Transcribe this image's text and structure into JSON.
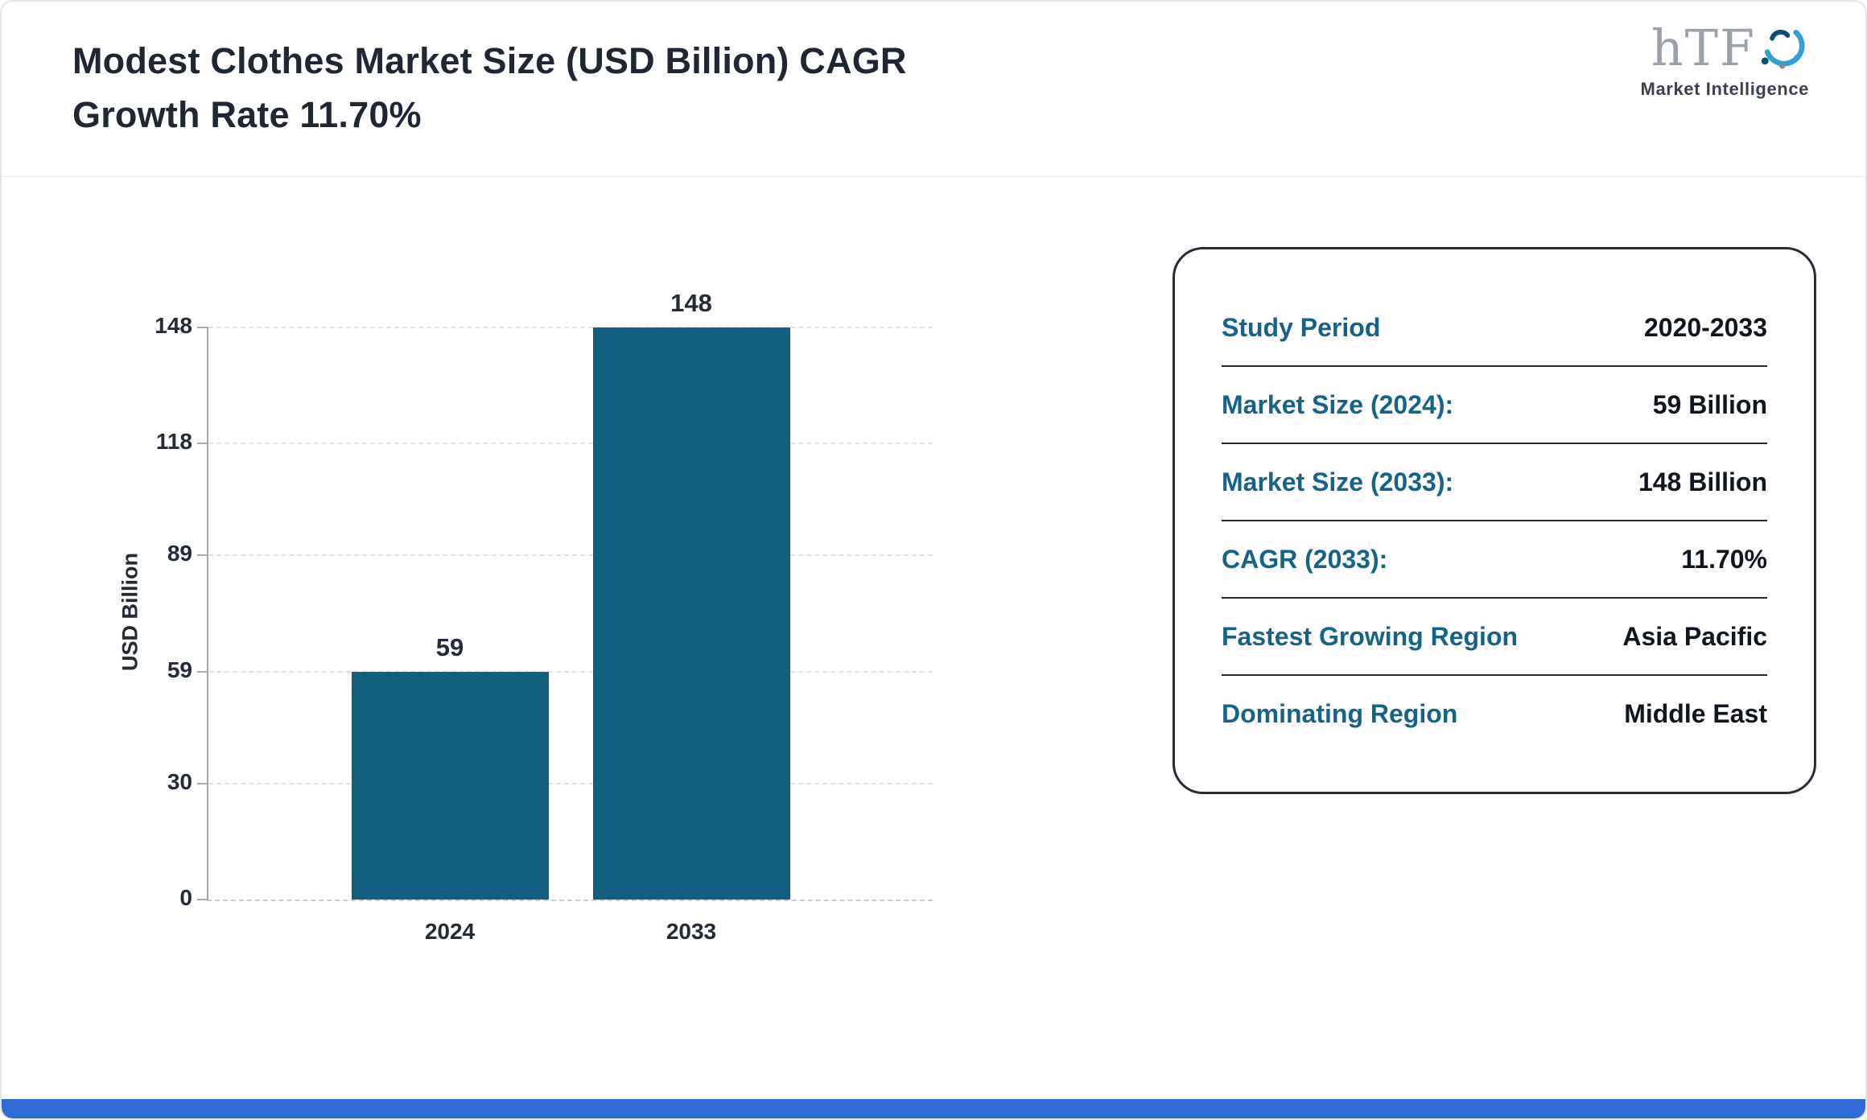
{
  "header": {
    "title_line1": "Modest Clothes Market Size (USD Billion) CAGR",
    "title_line2": "Growth Rate 11.70%"
  },
  "logo": {
    "mark": "hTF",
    "tagline": "Market Intelligence"
  },
  "chart_data": {
    "type": "bar",
    "title": "Modest Clothes Market Size (USD Billion) CAGR Growth Rate 11.70%",
    "categories": [
      "2024",
      "2033"
    ],
    "values": [
      59,
      148
    ],
    "value_labels": [
      "59",
      "148"
    ],
    "xlabel": "",
    "ylabel": "USD Billion",
    "ylim": [
      0,
      148
    ],
    "yticks": [
      0,
      30,
      59,
      89,
      118,
      148
    ],
    "grid": "horizontal-dashed",
    "legend": "none",
    "bar_color": "#115e7e"
  },
  "panel": {
    "rows": [
      {
        "label": "Study Period",
        "value": "2020-2033"
      },
      {
        "label": "Market Size (2024):",
        "value": "59 Billion"
      },
      {
        "label": "Market Size (2033):",
        "value": "148 Billion"
      },
      {
        "label": "CAGR (2033):",
        "value": "11.70%"
      },
      {
        "label": "Fastest Growing Region",
        "value": "Asia Pacific"
      },
      {
        "label": "Dominating Region",
        "value": "Middle East"
      }
    ]
  },
  "colors": {
    "bar": "#115e7e",
    "label_teal": "#166389",
    "footer_blue": "#2e6bd4",
    "title_dark": "#1e2733"
  }
}
